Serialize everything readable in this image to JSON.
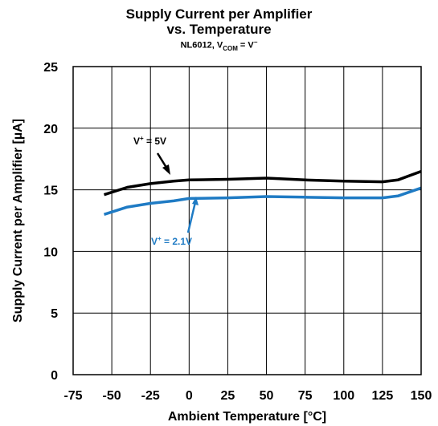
{
  "chart_data": {
    "type": "line",
    "title": "Supply Current per Amplifier",
    "subtitle": "vs. Temperature",
    "condition": {
      "part": "NL6012, V",
      "sub": "COM",
      "mid": " = V",
      "sup": "−"
    },
    "xlabel": "Ambient Temperature [°C]",
    "ylabel": "Supply Current per Amplifier [µA]",
    "xlim": [
      -75,
      150
    ],
    "ylim": [
      0,
      25
    ],
    "xticks": [
      "-75",
      "-50",
      "-25",
      "0",
      "25",
      "50",
      "75",
      "100",
      "125",
      "150"
    ],
    "yticks": [
      "0",
      "5",
      "10",
      "15",
      "20",
      "25"
    ],
    "grid": true,
    "series": [
      {
        "name": "V+ = 5V",
        "label_base": "V",
        "label_sup": "+",
        "label_rest": " = 5V",
        "color": "#000000",
        "x": [
          -55,
          -40,
          -25,
          -10,
          0,
          25,
          50,
          75,
          100,
          125,
          135,
          150
        ],
        "y": [
          14.6,
          15.2,
          15.5,
          15.7,
          15.8,
          15.85,
          15.95,
          15.8,
          15.7,
          15.65,
          15.8,
          16.5
        ]
      },
      {
        "name": "V+ = 2.1V",
        "label_base": "V",
        "label_sup": "+",
        "label_rest": " = 2.1V",
        "color": "#1f7bc4",
        "x": [
          -55,
          -40,
          -25,
          -10,
          0,
          25,
          50,
          75,
          100,
          125,
          135,
          150
        ],
        "y": [
          13.0,
          13.6,
          13.9,
          14.1,
          14.3,
          14.35,
          14.45,
          14.4,
          14.35,
          14.35,
          14.5,
          15.15
        ]
      }
    ]
  }
}
